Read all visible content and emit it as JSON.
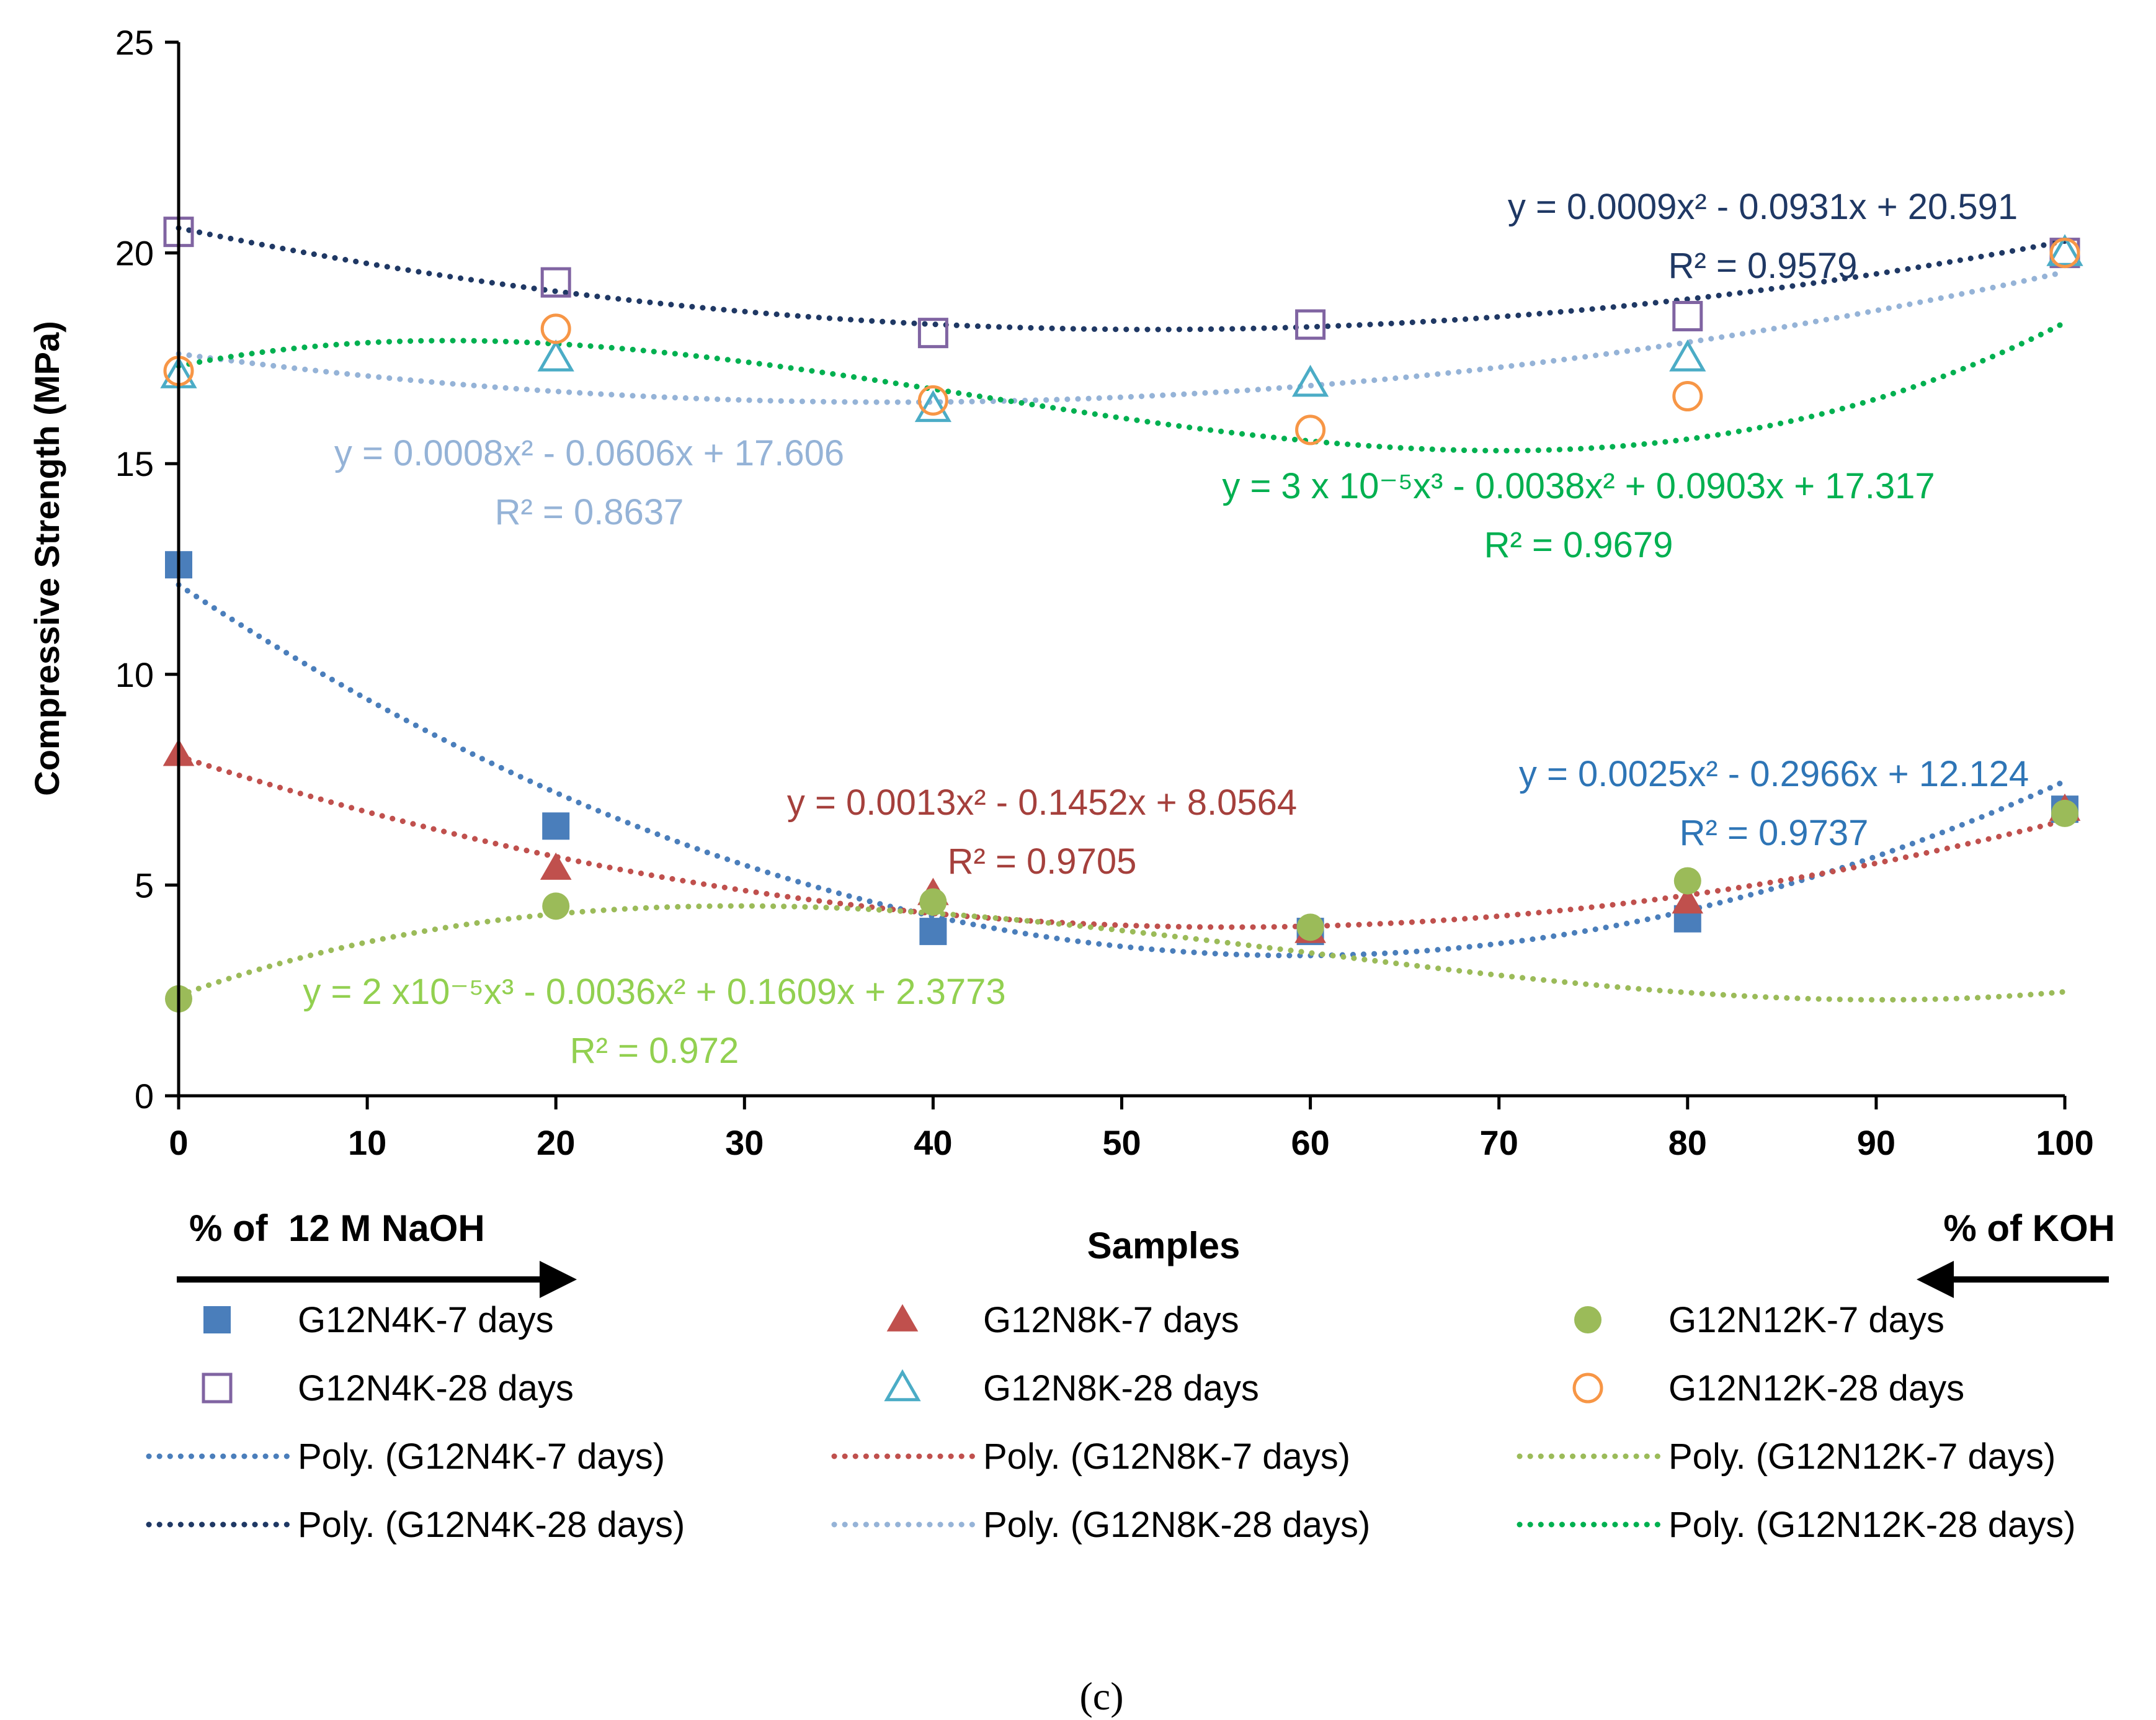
{
  "chart_data": {
    "type": "scatter",
    "ylabel": "Compressive Strength (MPa)",
    "xlabel": "Samples",
    "xlim": [
      0,
      100
    ],
    "ylim": [
      0,
      25
    ],
    "x_ticks": [
      "0",
      "10",
      "20",
      "30",
      "40",
      "50",
      "60",
      "70",
      "80",
      "90",
      "100"
    ],
    "y_ticks": [
      "0",
      "5",
      "10",
      "15",
      "20",
      "25"
    ],
    "x": [
      0,
      20,
      40,
      60,
      80,
      100
    ],
    "left_note": "% of  12 M NaOH",
    "right_note": "% of KOH",
    "caption": "(c)",
    "series": [
      {
        "name": "G12N4K-7 days",
        "marker": "square-filled",
        "color": "#4a7ebb",
        "values": [
          12.6,
          6.4,
          3.9,
          3.9,
          4.2,
          6.8
        ]
      },
      {
        "name": "G12N8K-7 days",
        "marker": "triangle-filled",
        "color": "#c0504d",
        "values": [
          8.1,
          5.4,
          4.8,
          3.9,
          4.6,
          6.8
        ]
      },
      {
        "name": "G12N12K-7 days",
        "marker": "circle-filled",
        "color": "#9bbb59",
        "values": [
          2.3,
          4.5,
          4.6,
          4.0,
          5.1,
          6.7
        ]
      },
      {
        "name": "G12N4K-28 days",
        "marker": "square-open",
        "color": "#8064a2",
        "values": [
          20.5,
          19.3,
          18.1,
          18.3,
          18.5,
          20.0
        ]
      },
      {
        "name": "G12N8K-28 days",
        "marker": "triangle-open",
        "color": "#4bacc6",
        "values": [
          17.1,
          17.5,
          16.3,
          16.9,
          17.5,
          20.0
        ]
      },
      {
        "name": "G12N12K-28 days",
        "marker": "circle-open",
        "color": "#f79646",
        "values": [
          17.2,
          18.2,
          16.5,
          15.8,
          16.6,
          20.0
        ]
      }
    ],
    "trendlines": [
      {
        "name": "Poly. (G12N4K-7 days)",
        "color": "#4a7ebb",
        "coef": [
          12.124,
          -0.2966,
          0.0025
        ],
        "equation": "y = 0.0025x² - 0.2966x + 12.124",
        "r2": "R² = 0.9737",
        "label_color": "#2e75b6"
      },
      {
        "name": "Poly. (G12N8K-7 days)",
        "color": "#c0504d",
        "coef": [
          8.0564,
          -0.1452,
          0.0013
        ],
        "equation": "y = 0.0013x² - 0.1452x + 8.0564",
        "r2": "R² = 0.9705",
        "label_color": "#a5403c"
      },
      {
        "name": "Poly. (G12N12K-7 days)",
        "color": "#9bbb59",
        "coef": [
          2.3773,
          0.1609,
          -0.0036,
          2e-05
        ],
        "equation": "y = 2 x10⁻⁵x³ - 0.0036x² + 0.1609x + 2.3773",
        "r2": "R² = 0.972",
        "label_color": "#92d050"
      },
      {
        "name": "Poly. (G12N4K-28 days)",
        "color": "#1f3864",
        "coef": [
          20.591,
          -0.0931,
          0.0009
        ],
        "equation": "y = 0.0009x² - 0.0931x + 20.591",
        "r2": "R² = 0.9579",
        "label_color": "#1f3864"
      },
      {
        "name": "Poly. (G12N8K-28 days)",
        "color": "#95b3d7",
        "coef": [
          17.606,
          -0.0606,
          0.0008
        ],
        "equation": "y = 0.0008x² - 0.0606x + 17.606",
        "r2": "R² = 0.8637",
        "label_color": "#95b3d7"
      },
      {
        "name": "Poly. (G12N12K-28 days)",
        "color": "#00b050",
        "coef": [
          17.317,
          0.0903,
          -0.0038,
          3e-05
        ],
        "equation": "y = 3 x 10⁻⁵x³ - 0.0038x² + 0.0903x + 17.317",
        "r2": "R² = 0.9679",
        "label_color": "#00b050"
      }
    ]
  }
}
